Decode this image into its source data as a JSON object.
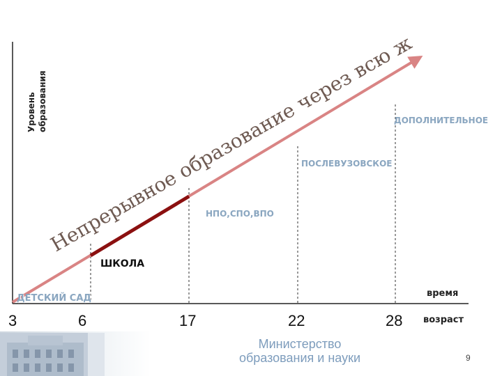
{
  "y_axis_label": [
    "Уровень",
    "образования"
  ],
  "slogan": "Непрерывное образование через всю жизнь",
  "levels": {
    "kindergarten": "ДЕТСКИЙ САД",
    "school": "ШКОЛА",
    "npo_spo_vpo": "НПО,СПО,ВПО",
    "postgraduate": "ПОСЛЕВУЗОВСКОЕ",
    "additional": "ДОПОЛНИТЕЛЬНОЕ"
  },
  "x_axis": {
    "label_top": "время",
    "label_bottom": "возраст",
    "ages": [
      "3",
      "6",
      "17",
      "22",
      "28"
    ]
  },
  "footer": {
    "ministry": [
      "Министерство",
      "образования и науки"
    ],
    "page_number": "9"
  },
  "colors": {
    "arrow": "#d98484",
    "school_segment": "#8b1010",
    "level_text": "#8aa6c0",
    "ministry_text": "#7d9cbc"
  }
}
